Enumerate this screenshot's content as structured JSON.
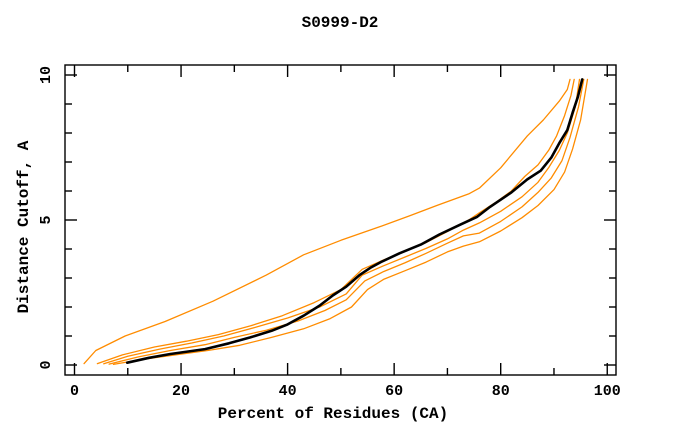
{
  "title": "S0999-D2",
  "colors": {
    "model_line": "#ff8c00",
    "reference_line": "#000000",
    "axis": "#000000",
    "background": "#ffffff"
  },
  "chart_data": {
    "type": "line",
    "title": "S0999-D2",
    "xlabel": "Percent of Residues (CA)",
    "ylabel": "Distance Cutoff, A",
    "xlim": [
      0,
      100
    ],
    "ylim": [
      0,
      10
    ],
    "x_major_ticks": [
      0,
      20,
      40,
      60,
      80,
      100
    ],
    "x_minor_ticks": [
      10,
      30,
      50,
      70,
      90
    ],
    "y_major_ticks": [
      0,
      5,
      10
    ],
    "y_minor_ticks": [
      1,
      2,
      3,
      4,
      6,
      7,
      8,
      9
    ],
    "grid": false,
    "legend": "none",
    "series": [
      {
        "name": "model-orange-1",
        "color": "#ff8c00",
        "width": 1.3,
        "points": [
          [
            1.8,
            0.05
          ],
          [
            4,
            0.5
          ],
          [
            9.5,
            1.0
          ],
          [
            17,
            1.5
          ],
          [
            26,
            2.2
          ],
          [
            36,
            3.1
          ],
          [
            43,
            3.8
          ],
          [
            50,
            4.3
          ],
          [
            57,
            4.75
          ],
          [
            63,
            5.15
          ],
          [
            68,
            5.5
          ],
          [
            74,
            5.9
          ],
          [
            76,
            6.1
          ],
          [
            80,
            6.8
          ],
          [
            85,
            7.9
          ],
          [
            88,
            8.45
          ],
          [
            91,
            9.1
          ],
          [
            92.5,
            9.5
          ],
          [
            93,
            9.85
          ]
        ]
      },
      {
        "name": "model-orange-2",
        "color": "#ff8c00",
        "width": 1.3,
        "points": [
          [
            4.3,
            0.05
          ],
          [
            9,
            0.35
          ],
          [
            15,
            0.62
          ],
          [
            21,
            0.82
          ],
          [
            27,
            1.05
          ],
          [
            33,
            1.35
          ],
          [
            39,
            1.7
          ],
          [
            45,
            2.15
          ],
          [
            50,
            2.6
          ],
          [
            54,
            3.3
          ],
          [
            58,
            3.62
          ],
          [
            62,
            3.92
          ],
          [
            66,
            4.22
          ],
          [
            70,
            4.6
          ],
          [
            74,
            5.0
          ],
          [
            76,
            5.25
          ],
          [
            79,
            5.6
          ],
          [
            82,
            6.0
          ],
          [
            84.5,
            6.5
          ],
          [
            87,
            6.9
          ],
          [
            89,
            7.4
          ],
          [
            90.5,
            7.9
          ],
          [
            92,
            8.6
          ],
          [
            93.2,
            9.3
          ],
          [
            93.8,
            9.85
          ]
        ]
      },
      {
        "name": "model-orange-3",
        "color": "#ff8c00",
        "width": 1.3,
        "points": [
          [
            5.5,
            0.04
          ],
          [
            10,
            0.3
          ],
          [
            16,
            0.55
          ],
          [
            22,
            0.76
          ],
          [
            28,
            1.0
          ],
          [
            34,
            1.3
          ],
          [
            40,
            1.62
          ],
          [
            46,
            2.0
          ],
          [
            51,
            2.45
          ],
          [
            54,
            3.1
          ],
          [
            58,
            3.42
          ],
          [
            62,
            3.72
          ],
          [
            66,
            4.02
          ],
          [
            70,
            4.35
          ],
          [
            73,
            4.65
          ],
          [
            76,
            4.9
          ],
          [
            80,
            5.3
          ],
          [
            84,
            5.8
          ],
          [
            87,
            6.3
          ],
          [
            89,
            6.8
          ],
          [
            91,
            7.4
          ],
          [
            92.5,
            8.0
          ],
          [
            94,
            8.9
          ],
          [
            94.8,
            9.85
          ]
        ]
      },
      {
        "name": "model-orange-4",
        "color": "#ff8c00",
        "width": 1.3,
        "points": [
          [
            6.5,
            0.03
          ],
          [
            12,
            0.28
          ],
          [
            18,
            0.5
          ],
          [
            24.5,
            0.7
          ],
          [
            30,
            0.95
          ],
          [
            36,
            1.2
          ],
          [
            42,
            1.52
          ],
          [
            47,
            1.88
          ],
          [
            51,
            2.25
          ],
          [
            54.5,
            2.9
          ],
          [
            58,
            3.22
          ],
          [
            62,
            3.52
          ],
          [
            66,
            3.85
          ],
          [
            70,
            4.2
          ],
          [
            73,
            4.45
          ],
          [
            76,
            4.55
          ],
          [
            80,
            4.95
          ],
          [
            84,
            5.45
          ],
          [
            87,
            5.95
          ],
          [
            89.5,
            6.45
          ],
          [
            91.5,
            7.05
          ],
          [
            93,
            7.85
          ],
          [
            94.6,
            8.9
          ],
          [
            95.6,
            9.85
          ]
        ]
      },
      {
        "name": "model-orange-5",
        "color": "#ff8c00",
        "width": 1.3,
        "points": [
          [
            7.3,
            0.02
          ],
          [
            13,
            0.2
          ],
          [
            19,
            0.35
          ],
          [
            25,
            0.5
          ],
          [
            31,
            0.68
          ],
          [
            37,
            0.95
          ],
          [
            43,
            1.25
          ],
          [
            48,
            1.6
          ],
          [
            52,
            2.0
          ],
          [
            55,
            2.6
          ],
          [
            58,
            2.95
          ],
          [
            62,
            3.25
          ],
          [
            66,
            3.55
          ],
          [
            70,
            3.9
          ],
          [
            73,
            4.1
          ],
          [
            76,
            4.25
          ],
          [
            80,
            4.62
          ],
          [
            84,
            5.08
          ],
          [
            87,
            5.5
          ],
          [
            90,
            6.05
          ],
          [
            92,
            6.65
          ],
          [
            93.5,
            7.45
          ],
          [
            95,
            8.45
          ],
          [
            96.3,
            9.85
          ]
        ]
      },
      {
        "name": "reference-black",
        "color": "#000000",
        "width": 2.6,
        "points": [
          [
            9.9,
            0.08
          ],
          [
            14,
            0.25
          ],
          [
            18,
            0.38
          ],
          [
            24.5,
            0.55
          ],
          [
            29,
            0.75
          ],
          [
            33,
            0.95
          ],
          [
            37,
            1.18
          ],
          [
            40,
            1.4
          ],
          [
            43,
            1.7
          ],
          [
            46,
            2.05
          ],
          [
            48.5,
            2.4
          ],
          [
            51,
            2.7
          ],
          [
            53.5,
            3.1
          ],
          [
            55.5,
            3.35
          ],
          [
            57.5,
            3.55
          ],
          [
            61,
            3.85
          ],
          [
            65,
            4.15
          ],
          [
            68.5,
            4.5
          ],
          [
            72.5,
            4.85
          ],
          [
            75.5,
            5.1
          ],
          [
            78,
            5.45
          ],
          [
            82,
            5.95
          ],
          [
            85,
            6.4
          ],
          [
            87.5,
            6.7
          ],
          [
            89.5,
            7.15
          ],
          [
            91,
            7.65
          ],
          [
            92.5,
            8.1
          ],
          [
            93.5,
            8.7
          ],
          [
            94.5,
            9.25
          ],
          [
            95.3,
            9.85
          ]
        ]
      }
    ]
  }
}
